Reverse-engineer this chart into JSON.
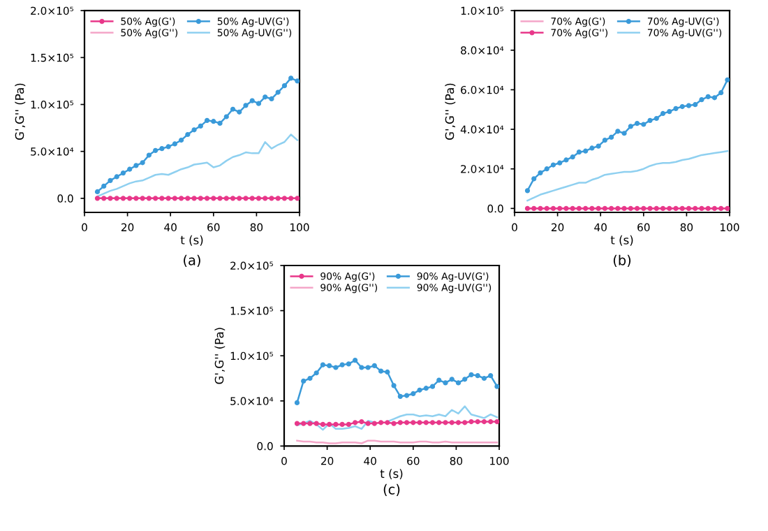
{
  "chart_data": [
    {
      "type": "line",
      "xlabel": "t (s)",
      "ylabel": "G',G'' (Pa)",
      "annotations": [
        "(a)"
      ],
      "legend": "top left",
      "grid": false,
      "x": [
        6,
        9,
        12,
        15,
        18,
        21,
        24,
        27,
        30,
        33,
        36,
        39,
        42,
        45,
        48,
        51,
        54,
        57,
        60,
        63,
        66,
        69,
        72,
        75,
        78,
        81,
        84,
        87,
        90,
        93,
        96,
        99
      ],
      "xlim": [
        0,
        100
      ],
      "xticks": [
        0,
        20,
        40,
        60,
        80,
        100
      ],
      "ylim": [
        -15000,
        200000
      ],
      "yticks": [
        {
          "value": 0,
          "label": "0.0"
        },
        {
          "value": 50000,
          "label": "5.0×10⁴"
        },
        {
          "value": 100000,
          "label": "1.0×10⁵"
        },
        {
          "value": 150000,
          "label": "1.5×10⁵"
        },
        {
          "value": 200000,
          "label": "2.0×10⁵"
        }
      ],
      "series": [
        {
          "name": "50% Ag(G')",
          "color": "#e8388a",
          "marker": "circle",
          "values": [
            0,
            0,
            0,
            0,
            0,
            0,
            0,
            0,
            0,
            0,
            0,
            0,
            0,
            0,
            0,
            0,
            0,
            0,
            0,
            0,
            0,
            0,
            0,
            0,
            0,
            0,
            0,
            0,
            0,
            0,
            0,
            0
          ]
        },
        {
          "name": "50% Ag(G'')",
          "color": "#f4a6c8",
          "marker": "none",
          "values": [
            0,
            0,
            0,
            0,
            0,
            0,
            0,
            0,
            0,
            0,
            0,
            0,
            0,
            0,
            0,
            0,
            0,
            0,
            0,
            0,
            0,
            0,
            0,
            0,
            0,
            0,
            0,
            0,
            0,
            0,
            0,
            0
          ]
        },
        {
          "name": "50% Ag-UV(G')",
          "color": "#3a9ad9",
          "marker": "circle",
          "values": [
            7000,
            13000,
            19000,
            23000,
            27000,
            31000,
            35000,
            38000,
            46000,
            51000,
            53000,
            55000,
            58000,
            62000,
            68000,
            73000,
            77000,
            83000,
            82000,
            80000,
            87000,
            95000,
            92000,
            99000,
            104000,
            101000,
            108000,
            106000,
            113000,
            120000,
            128000,
            125000
          ]
        },
        {
          "name": "50% Ag-UV(G'')",
          "color": "#8fd0f0",
          "marker": "none",
          "values": [
            2000,
            5000,
            8000,
            10000,
            13000,
            16000,
            18000,
            19000,
            22000,
            25000,
            26000,
            25000,
            28000,
            31000,
            33000,
            36000,
            37000,
            38000,
            33000,
            35000,
            40000,
            44000,
            46000,
            49000,
            48000,
            48000,
            60000,
            53000,
            57000,
            60000,
            68000,
            62000
          ]
        }
      ]
    },
    {
      "type": "line",
      "xlabel": "t (s)",
      "ylabel": "G',G'' (Pa)",
      "annotations": [
        "(b)"
      ],
      "legend": "top left",
      "grid": false,
      "x": [
        6,
        9,
        12,
        15,
        18,
        21,
        24,
        27,
        30,
        33,
        36,
        39,
        42,
        45,
        48,
        51,
        54,
        57,
        60,
        63,
        66,
        69,
        72,
        75,
        78,
        81,
        84,
        87,
        90,
        93,
        96,
        99
      ],
      "xlim": [
        0,
        100
      ],
      "xticks": [
        0,
        20,
        40,
        60,
        80,
        100
      ],
      "ylim": [
        -2000,
        100000
      ],
      "yticks": [
        {
          "value": 0,
          "label": "0.0"
        },
        {
          "value": 20000,
          "label": "2.0×10⁴"
        },
        {
          "value": 40000,
          "label": "4.0×10⁴"
        },
        {
          "value": 60000,
          "label": "6.0×10⁴"
        },
        {
          "value": 80000,
          "label": "8.0×10⁴"
        },
        {
          "value": 100000,
          "label": "1.0×10⁵"
        }
      ],
      "series": [
        {
          "name": "70% Ag(G')",
          "color": "#f4a6c8",
          "marker": "none",
          "values": [
            0,
            0,
            0,
            0,
            0,
            0,
            0,
            0,
            0,
            0,
            0,
            0,
            0,
            0,
            0,
            0,
            0,
            0,
            0,
            0,
            0,
            0,
            0,
            0,
            0,
            0,
            0,
            0,
            0,
            0,
            0,
            0
          ]
        },
        {
          "name": "70% Ag(G'')",
          "color": "#e8388a",
          "marker": "circle",
          "values": [
            0,
            0,
            0,
            0,
            0,
            0,
            0,
            0,
            0,
            0,
            0,
            0,
            0,
            0,
            0,
            0,
            0,
            0,
            0,
            0,
            0,
            0,
            0,
            0,
            0,
            0,
            0,
            0,
            0,
            0,
            0,
            0
          ]
        },
        {
          "name": "70% Ag-UV(G')",
          "color": "#3a9ad9",
          "marker": "circle",
          "values": [
            9000,
            15000,
            18000,
            20000,
            22000,
            23000,
            24500,
            26000,
            28500,
            29000,
            30500,
            31500,
            34500,
            36000,
            39000,
            38000,
            41500,
            43000,
            42500,
            44500,
            45500,
            48000,
            49000,
            50500,
            51500,
            52000,
            52500,
            55000,
            56500,
            56000,
            58500,
            65000
          ]
        },
        {
          "name": "70% Ag-UV(G'')",
          "color": "#8fd0f0",
          "marker": "none",
          "values": [
            4000,
            5500,
            7000,
            8000,
            9000,
            10000,
            11000,
            12000,
            13000,
            13000,
            14500,
            15500,
            17000,
            17500,
            18000,
            18500,
            18500,
            19000,
            20000,
            21500,
            22500,
            23000,
            23000,
            23500,
            24500,
            25000,
            26000,
            27000,
            27500,
            28000,
            28500,
            29000
          ]
        }
      ]
    },
    {
      "type": "line",
      "xlabel": "t (s)",
      "ylabel": "G',G'' (Pa)",
      "annotations": [
        "(c)"
      ],
      "legend": "top left",
      "grid": false,
      "x": [
        6,
        9,
        12,
        15,
        18,
        21,
        24,
        27,
        30,
        33,
        36,
        39,
        42,
        45,
        48,
        51,
        54,
        57,
        60,
        63,
        66,
        69,
        72,
        75,
        78,
        81,
        84,
        87,
        90,
        93,
        96,
        99
      ],
      "xlim": [
        0,
        100
      ],
      "xticks": [
        0,
        20,
        40,
        60,
        80,
        100
      ],
      "ylim": [
        0,
        200000
      ],
      "yticks": [
        {
          "value": 0,
          "label": "0.0"
        },
        {
          "value": 50000,
          "label": "5.0×10⁴"
        },
        {
          "value": 100000,
          "label": "1.0×10⁵"
        },
        {
          "value": 150000,
          "label": "1.5×10⁵"
        },
        {
          "value": 200000,
          "label": "2.0×10⁵"
        }
      ],
      "series": [
        {
          "name": "90% Ag(G')",
          "color": "#e8388a",
          "marker": "circle",
          "values": [
            25000,
            25000,
            25000,
            25000,
            24000,
            24000,
            24000,
            24000,
            24000,
            26000,
            27000,
            25000,
            25000,
            26000,
            26000,
            25000,
            26000,
            26000,
            26000,
            26000,
            26000,
            26000,
            26000,
            26000,
            26000,
            26000,
            26000,
            27000,
            27000,
            27000,
            27000,
            27000
          ]
        },
        {
          "name": "90% Ag(G'')",
          "color": "#f4a6c8",
          "marker": "none",
          "values": [
            6000,
            5000,
            5000,
            4000,
            4000,
            3000,
            3000,
            4000,
            4000,
            4000,
            3000,
            6000,
            6000,
            5000,
            5000,
            5000,
            4000,
            4000,
            4000,
            5000,
            5000,
            4000,
            4000,
            5000,
            4000,
            4000,
            4000,
            4000,
            4000,
            4000,
            4000,
            4000
          ]
        },
        {
          "name": "90% Ag-UV(G')",
          "color": "#3a9ad9",
          "marker": "circle",
          "values": [
            48000,
            72000,
            75000,
            81000,
            90000,
            89000,
            87000,
            90000,
            91000,
            95000,
            87000,
            87000,
            89000,
            83000,
            82000,
            67000,
            55000,
            56000,
            58000,
            62000,
            64000,
            66000,
            73000,
            70000,
            74000,
            70000,
            74000,
            79000,
            78000,
            75000,
            78000,
            66000
          ]
        },
        {
          "name": "90% Ag-UV(G'')",
          "color": "#8fd0f0",
          "marker": "none",
          "values": [
            23000,
            25000,
            28000,
            24000,
            18000,
            25000,
            19000,
            19000,
            20000,
            22000,
            19000,
            28000,
            26000,
            null,
            27000,
            30000,
            33000,
            35000,
            35000,
            33000,
            34000,
            33000,
            35000,
            33000,
            40000,
            36000,
            44000,
            35000,
            33000,
            31000,
            35000,
            32000
          ]
        }
      ]
    }
  ]
}
